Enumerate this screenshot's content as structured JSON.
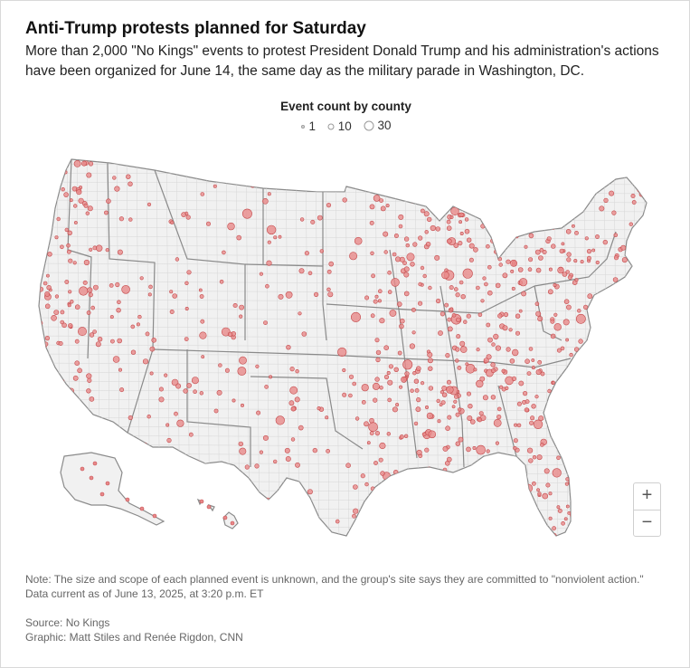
{
  "header": {
    "title": "Anti-Trump protests planned for Saturday",
    "subtitle": "More than 2,000 \"No Kings\" events to protest President Donald Trump and his administration's actions have been organized for June 14, the same day as the military parade in Washington, DC."
  },
  "legend": {
    "title": "Event count by county",
    "items": [
      {
        "label": "1",
        "count": 1
      },
      {
        "label": "10",
        "count": 10
      },
      {
        "label": "30",
        "count": 30
      }
    ]
  },
  "zoom": {
    "in_label": "+",
    "out_label": "−"
  },
  "footer": {
    "note_line1": "Note: The size and scope of each planned event is unknown, and the group's site says they are committed to \"nonviolent action.\"",
    "note_line2": "Data current as of June 13, 2025, at 3:20 p.m. ET",
    "source": "Source: No Kings",
    "graphic": "Graphic: Matt Stiles and Renée Rigdon, CNN"
  },
  "colors": {
    "dot_fill": "#e8898a",
    "dot_stroke": "#c44a4c",
    "land": "#f1f1f1",
    "state_border": "#8a8a8a",
    "county_border": "#d4d4d4"
  }
}
